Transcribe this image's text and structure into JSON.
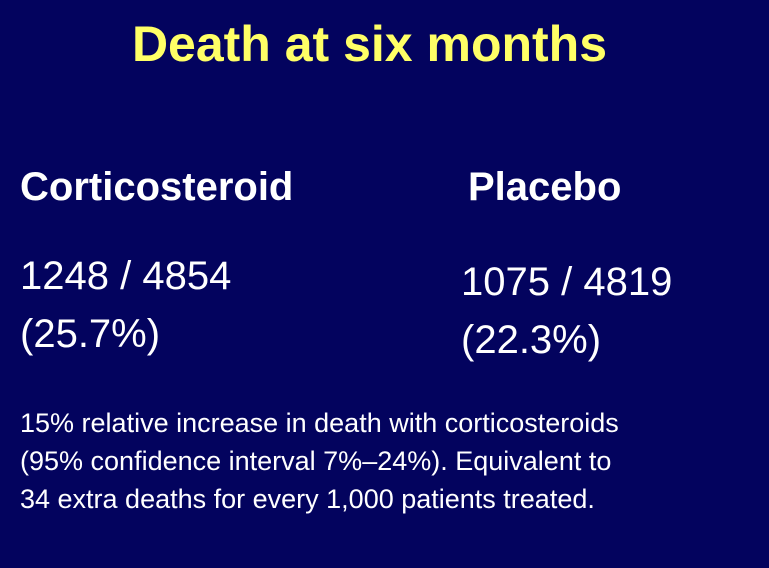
{
  "slide": {
    "title": "Death at six months",
    "corticosteroid": {
      "heading": "Corticosteroid",
      "count": "1248 / 4854",
      "percent": "(25.7%)"
    },
    "placebo": {
      "heading": "Placebo",
      "count": "1075 / 4819",
      "percent": "(22.3%)"
    },
    "summary_lines": [
      "15% relative increase in death with corticosteroids",
      "(95% confidence interval 7%–24%). Equivalent to",
      "34 extra deaths for every 1,000 patients treated."
    ]
  },
  "colors": {
    "background": "#03035e",
    "title": "#ffff66",
    "text": "#ffffff"
  }
}
